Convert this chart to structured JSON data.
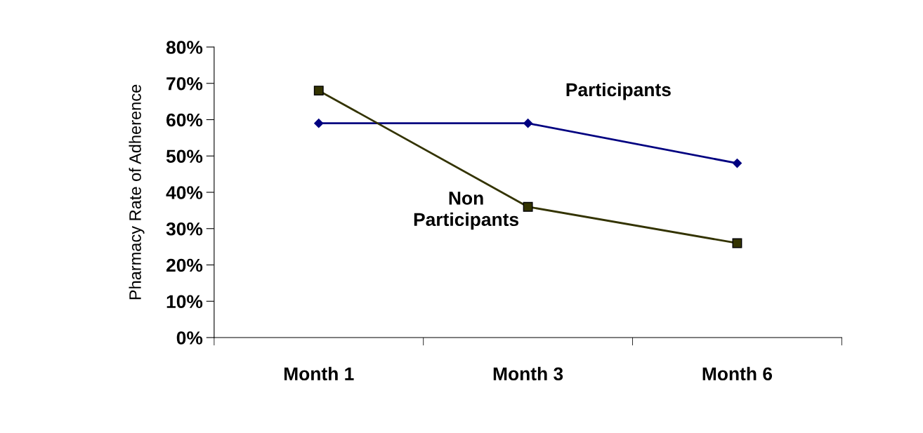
{
  "chart_data": {
    "type": "line",
    "ylabel": "Pharmacy Rate of Adherence",
    "categories": [
      "Month 1",
      "Month 3",
      "Month 6"
    ],
    "series": [
      {
        "name": "Participants",
        "color": "#000080",
        "marker": "diamond",
        "values": [
          59,
          59,
          48
        ]
      },
      {
        "name": "Non\nParticipants",
        "color": "#333300",
        "marker": "square",
        "values": [
          68,
          36,
          26
        ]
      }
    ],
    "ylim": [
      0,
      80
    ],
    "yticks": [
      {
        "value": 0,
        "label": "0%"
      },
      {
        "value": 10,
        "label": "10%"
      },
      {
        "value": 20,
        "label": "20%"
      },
      {
        "value": 30,
        "label": "30%"
      },
      {
        "value": 40,
        "label": "40%"
      },
      {
        "value": 50,
        "label": "50%"
      },
      {
        "value": 60,
        "label": "60%"
      },
      {
        "value": 70,
        "label": "70%"
      },
      {
        "value": 80,
        "label": "80%"
      }
    ],
    "grid": false,
    "legend": false,
    "line_style": "solid"
  }
}
